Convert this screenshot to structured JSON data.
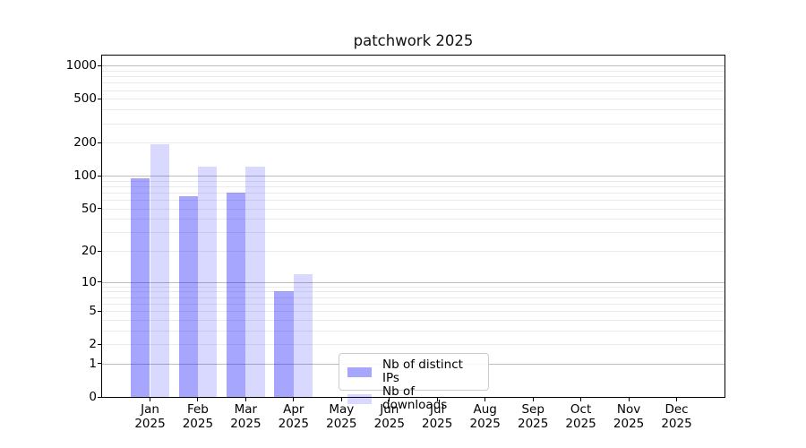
{
  "chart_data": {
    "type": "bar",
    "title": "patchwork 2025",
    "categories": [
      "Jan",
      "Feb",
      "Mar",
      "Apr",
      "May",
      "Jun",
      "Jul",
      "Aug",
      "Sep",
      "Oct",
      "Nov",
      "Dec"
    ],
    "x_tick_second_line": "2025",
    "series": [
      {
        "name": "Nb of distinct IPs",
        "color": "rgba(0,0,255,0.35)",
        "values": [
          95,
          65,
          70,
          8,
          0,
          0,
          0,
          0,
          0,
          0,
          0,
          0
        ]
      },
      {
        "name": "Nb of downloads",
        "color": "rgba(0,0,255,0.15)",
        "values": [
          195,
          120,
          120,
          12,
          0,
          0,
          0,
          0,
          0,
          0,
          0,
          0
        ]
      }
    ],
    "yticks": [
      0,
      1,
      2,
      5,
      10,
      20,
      50,
      100,
      200,
      500,
      1000
    ],
    "yscale": "log10(1+y)",
    "ylim": [
      0,
      1250
    ],
    "grid": true,
    "legend": {
      "location": "inside-lower-center-left"
    },
    "colors": {
      "bar_distinct_ips": "rgba(0,0,255,0.35)",
      "bar_downloads": "rgba(0,0,255,0.15)",
      "grid_major": "#bdbdbd",
      "grid_minor": "#ebebeb",
      "spine": "#000000"
    }
  }
}
